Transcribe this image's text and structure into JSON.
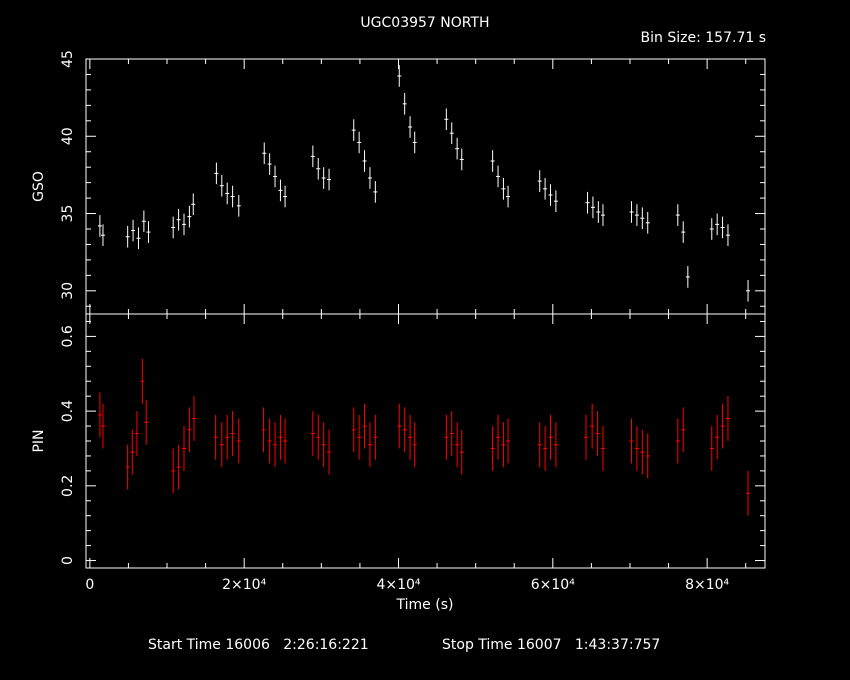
{
  "header": {
    "title": "UGC03957 NORTH",
    "bin_size": "Bin Size: 157.71 s"
  },
  "footer": {
    "start_time": "Start Time 16006   2:26:16:221",
    "stop_time": "Stop Time 16007   1:43:37:757"
  },
  "colors": {
    "background": "#000000",
    "axes": "#ffffff",
    "gso": "#ffffff",
    "pin": "#ff0000"
  },
  "chart_data": {
    "type": "scatter",
    "xlabel": "Time (s)",
    "xlim": [
      -500,
      87500
    ],
    "x_ticks": [
      {
        "v": 0,
        "label": "0"
      },
      {
        "v": 20000,
        "label": "2×10⁴"
      },
      {
        "v": 40000,
        "label": "4×10⁴"
      },
      {
        "v": 60000,
        "label": "6×10⁴"
      },
      {
        "v": 80000,
        "label": "8×10⁴"
      }
    ],
    "panels": [
      {
        "name": "gso",
        "ylabel": "GSO",
        "ylim": [
          28.5,
          45
        ],
        "y_ticks": [
          {
            "v": 30,
            "label": "30"
          },
          {
            "v": 35,
            "label": "35"
          },
          {
            "v": 40,
            "label": "40"
          },
          {
            "v": 45,
            "label": "45"
          }
        ],
        "color": "#ffffff",
        "series": [
          {
            "name": "",
            "err": 0.7,
            "points": [
              [
                1300,
                34.2
              ],
              [
                1700,
                33.6
              ],
              [
                4900,
                33.5
              ],
              [
                5600,
                33.9
              ],
              [
                6300,
                33.4
              ],
              [
                7000,
                34.5
              ],
              [
                7600,
                33.8
              ],
              [
                10800,
                34.1
              ],
              [
                11500,
                34.6
              ],
              [
                12200,
                34.3
              ],
              [
                12900,
                34.8
              ],
              [
                13400,
                35.6
              ],
              [
                16400,
                37.6
              ],
              [
                17100,
                36.8
              ],
              [
                17800,
                36.3
              ],
              [
                18500,
                36.1
              ],
              [
                19300,
                35.5
              ],
              [
                22600,
                38.9
              ],
              [
                23300,
                38.2
              ],
              [
                24000,
                37.4
              ],
              [
                24700,
                36.5
              ],
              [
                25300,
                36.1
              ],
              [
                28900,
                38.7
              ],
              [
                29600,
                37.9
              ],
              [
                30300,
                37.3
              ],
              [
                31000,
                37.2
              ],
              [
                34200,
                40.4
              ],
              [
                34900,
                39.6
              ],
              [
                35600,
                38.4
              ],
              [
                36300,
                37.3
              ],
              [
                37000,
                36.4
              ],
              [
                40100,
                43.9
              ],
              [
                40800,
                42.1
              ],
              [
                41500,
                40.6
              ],
              [
                42100,
                39.6
              ],
              [
                46200,
                41.1
              ],
              [
                46900,
                40.2
              ],
              [
                47600,
                39.2
              ],
              [
                48200,
                38.5
              ],
              [
                52200,
                38.4
              ],
              [
                52900,
                37.4
              ],
              [
                53600,
                36.6
              ],
              [
                54200,
                36.1
              ],
              [
                58300,
                37.1
              ],
              [
                59000,
                36.6
              ],
              [
                59700,
                36.2
              ],
              [
                60400,
                35.8
              ],
              [
                64500,
                35.7
              ],
              [
                65200,
                35.4
              ],
              [
                65900,
                35.1
              ],
              [
                66500,
                34.9
              ],
              [
                70200,
                35.1
              ],
              [
                70900,
                34.9
              ],
              [
                71600,
                34.7
              ],
              [
                72300,
                34.4
              ],
              [
                76200,
                34.9
              ],
              [
                76900,
                33.8
              ],
              [
                77500,
                30.9
              ],
              [
                80600,
                34.0
              ],
              [
                81300,
                34.3
              ],
              [
                82000,
                34.1
              ],
              [
                82700,
                33.6
              ],
              [
                85300,
                30.0
              ]
            ]
          }
        ]
      },
      {
        "name": "pin",
        "ylabel": "PIN",
        "ylim": [
          -0.02,
          0.66
        ],
        "y_ticks": [
          {
            "v": 0,
            "label": "0"
          },
          {
            "v": 0.2,
            "label": "0.2"
          },
          {
            "v": 0.4,
            "label": "0.4"
          },
          {
            "v": 0.6,
            "label": "0.6"
          }
        ],
        "color": "#ff0000",
        "series": [
          {
            "name": "",
            "err": 0.06,
            "points": [
              [
                1300,
                0.39
              ],
              [
                1700,
                0.36
              ],
              [
                4900,
                0.25
              ],
              [
                5500,
                0.29
              ],
              [
                6100,
                0.34
              ],
              [
                6800,
                0.48
              ],
              [
                7300,
                0.37
              ],
              [
                10800,
                0.24
              ],
              [
                11500,
                0.25
              ],
              [
                12200,
                0.3
              ],
              [
                12900,
                0.35
              ],
              [
                13500,
                0.38
              ],
              [
                16300,
                0.33
              ],
              [
                17100,
                0.31
              ],
              [
                17800,
                0.33
              ],
              [
                18500,
                0.34
              ],
              [
                19300,
                0.32
              ],
              [
                22500,
                0.35
              ],
              [
                23300,
                0.32
              ],
              [
                24000,
                0.31
              ],
              [
                24700,
                0.33
              ],
              [
                25300,
                0.32
              ],
              [
                28900,
                0.34
              ],
              [
                29600,
                0.33
              ],
              [
                30300,
                0.31
              ],
              [
                31000,
                0.29
              ],
              [
                34200,
                0.35
              ],
              [
                34900,
                0.33
              ],
              [
                35600,
                0.36
              ],
              [
                36300,
                0.31
              ],
              [
                37000,
                0.33
              ],
              [
                40100,
                0.36
              ],
              [
                40800,
                0.35
              ],
              [
                41500,
                0.33
              ],
              [
                42100,
                0.31
              ],
              [
                46200,
                0.33
              ],
              [
                46900,
                0.34
              ],
              [
                47600,
                0.31
              ],
              [
                48200,
                0.29
              ],
              [
                52200,
                0.3
              ],
              [
                52900,
                0.33
              ],
              [
                53600,
                0.31
              ],
              [
                54200,
                0.32
              ],
              [
                58300,
                0.31
              ],
              [
                59000,
                0.3
              ],
              [
                59700,
                0.33
              ],
              [
                60400,
                0.31
              ],
              [
                64300,
                0.33
              ],
              [
                65100,
                0.36
              ],
              [
                65800,
                0.34
              ],
              [
                66500,
                0.3
              ],
              [
                70200,
                0.32
              ],
              [
                70900,
                0.3
              ],
              [
                71600,
                0.29
              ],
              [
                72300,
                0.28
              ],
              [
                76200,
                0.32
              ],
              [
                76900,
                0.35
              ],
              [
                80600,
                0.3
              ],
              [
                81300,
                0.33
              ],
              [
                82000,
                0.36
              ],
              [
                82700,
                0.38
              ],
              [
                85300,
                0.18
              ]
            ]
          }
        ]
      }
    ]
  }
}
